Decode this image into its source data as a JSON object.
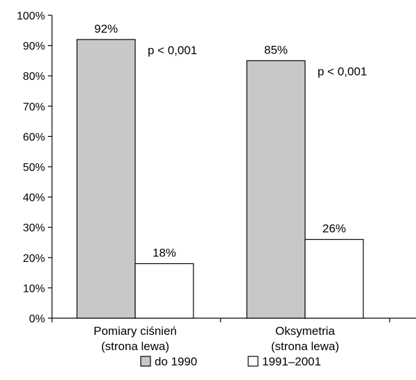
{
  "chart_data": {
    "type": "bar",
    "categories": [
      [
        "Pomiary ciśnień",
        "(strona lewa)"
      ],
      [
        "Oksymetria",
        "(strona lewa)"
      ]
    ],
    "series": [
      {
        "name": "do 1990",
        "values": [
          92,
          85
        ],
        "labels": [
          "92%",
          "85%"
        ],
        "color": "#c8c8c8"
      },
      {
        "name": "1991–2001",
        "values": [
          18,
          26
        ],
        "labels": [
          "18%",
          "26%"
        ],
        "color": "#ffffff"
      }
    ],
    "annotations": [
      "p < 0,001",
      "p < 0,001"
    ],
    "ylim": [
      0,
      100
    ],
    "yticks": [
      0,
      10,
      20,
      30,
      40,
      50,
      60,
      70,
      80,
      90,
      100
    ],
    "ytick_labels": [
      "0%",
      "10%",
      "20%",
      "30%",
      "40%",
      "50%",
      "60%",
      "70%",
      "80%",
      "90%",
      "100%"
    ],
    "grid": false,
    "legend": "bottom",
    "title": "",
    "xlabel": "",
    "ylabel": ""
  }
}
